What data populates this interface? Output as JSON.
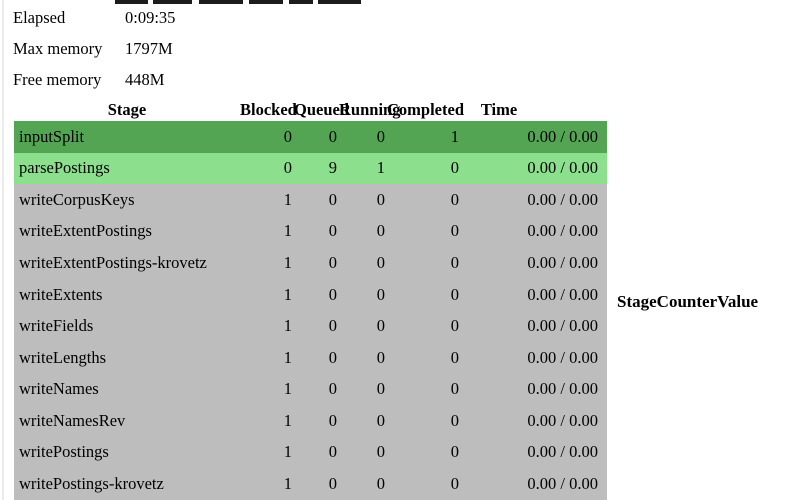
{
  "stats": [
    {
      "label": "Elapsed",
      "value": "0:09:35"
    },
    {
      "label": "Max memory",
      "value": "1797M"
    },
    {
      "label": "Free memory",
      "value": "448M"
    }
  ],
  "stage_table": {
    "columns": [
      "Stage",
      "Blocked",
      "Queued",
      "Running",
      "Completed",
      "Time"
    ],
    "rows": [
      {
        "name": "inputSplit",
        "blocked": "0",
        "queued": "0",
        "running": "0",
        "completed": "1",
        "time": "0.00 / 0.00",
        "state": "complete"
      },
      {
        "name": "parsePostings",
        "blocked": "0",
        "queued": "9",
        "running": "1",
        "completed": "0",
        "time": "0.00 / 0.00",
        "state": "running"
      },
      {
        "name": "writeCorpusKeys",
        "blocked": "1",
        "queued": "0",
        "running": "0",
        "completed": "0",
        "time": "0.00 / 0.00",
        "state": "waiting"
      },
      {
        "name": "writeExtentPostings",
        "blocked": "1",
        "queued": "0",
        "running": "0",
        "completed": "0",
        "time": "0.00 / 0.00",
        "state": "waiting"
      },
      {
        "name": "writeExtentPostings-krovetz",
        "blocked": "1",
        "queued": "0",
        "running": "0",
        "completed": "0",
        "time": "0.00 / 0.00",
        "state": "waiting"
      },
      {
        "name": "writeExtents",
        "blocked": "1",
        "queued": "0",
        "running": "0",
        "completed": "0",
        "time": "0.00 / 0.00",
        "state": "waiting"
      },
      {
        "name": "writeFields",
        "blocked": "1",
        "queued": "0",
        "running": "0",
        "completed": "0",
        "time": "0.00 / 0.00",
        "state": "waiting"
      },
      {
        "name": "writeLengths",
        "blocked": "1",
        "queued": "0",
        "running": "0",
        "completed": "0",
        "time": "0.00 / 0.00",
        "state": "waiting"
      },
      {
        "name": "writeNames",
        "blocked": "1",
        "queued": "0",
        "running": "0",
        "completed": "0",
        "time": "0.00 / 0.00",
        "state": "waiting"
      },
      {
        "name": "writeNamesRev",
        "blocked": "1",
        "queued": "0",
        "running": "0",
        "completed": "0",
        "time": "0.00 / 0.00",
        "state": "waiting"
      },
      {
        "name": "writePostings",
        "blocked": "1",
        "queued": "0",
        "running": "0",
        "completed": "0",
        "time": "0.00 / 0.00",
        "state": "waiting"
      },
      {
        "name": "writePostings-krovetz",
        "blocked": "1",
        "queued": "0",
        "running": "0",
        "completed": "0",
        "time": "0.00 / 0.00",
        "state": "waiting"
      }
    ]
  },
  "counter_table": {
    "columns": [
      "Stage",
      "Counter",
      "Value"
    ]
  },
  "colors": {
    "complete_row": "#53a553",
    "running_row": "#8cdf8c",
    "waiting_row": "#bdbdbd",
    "heading_fragment": "#1c1c1c"
  }
}
